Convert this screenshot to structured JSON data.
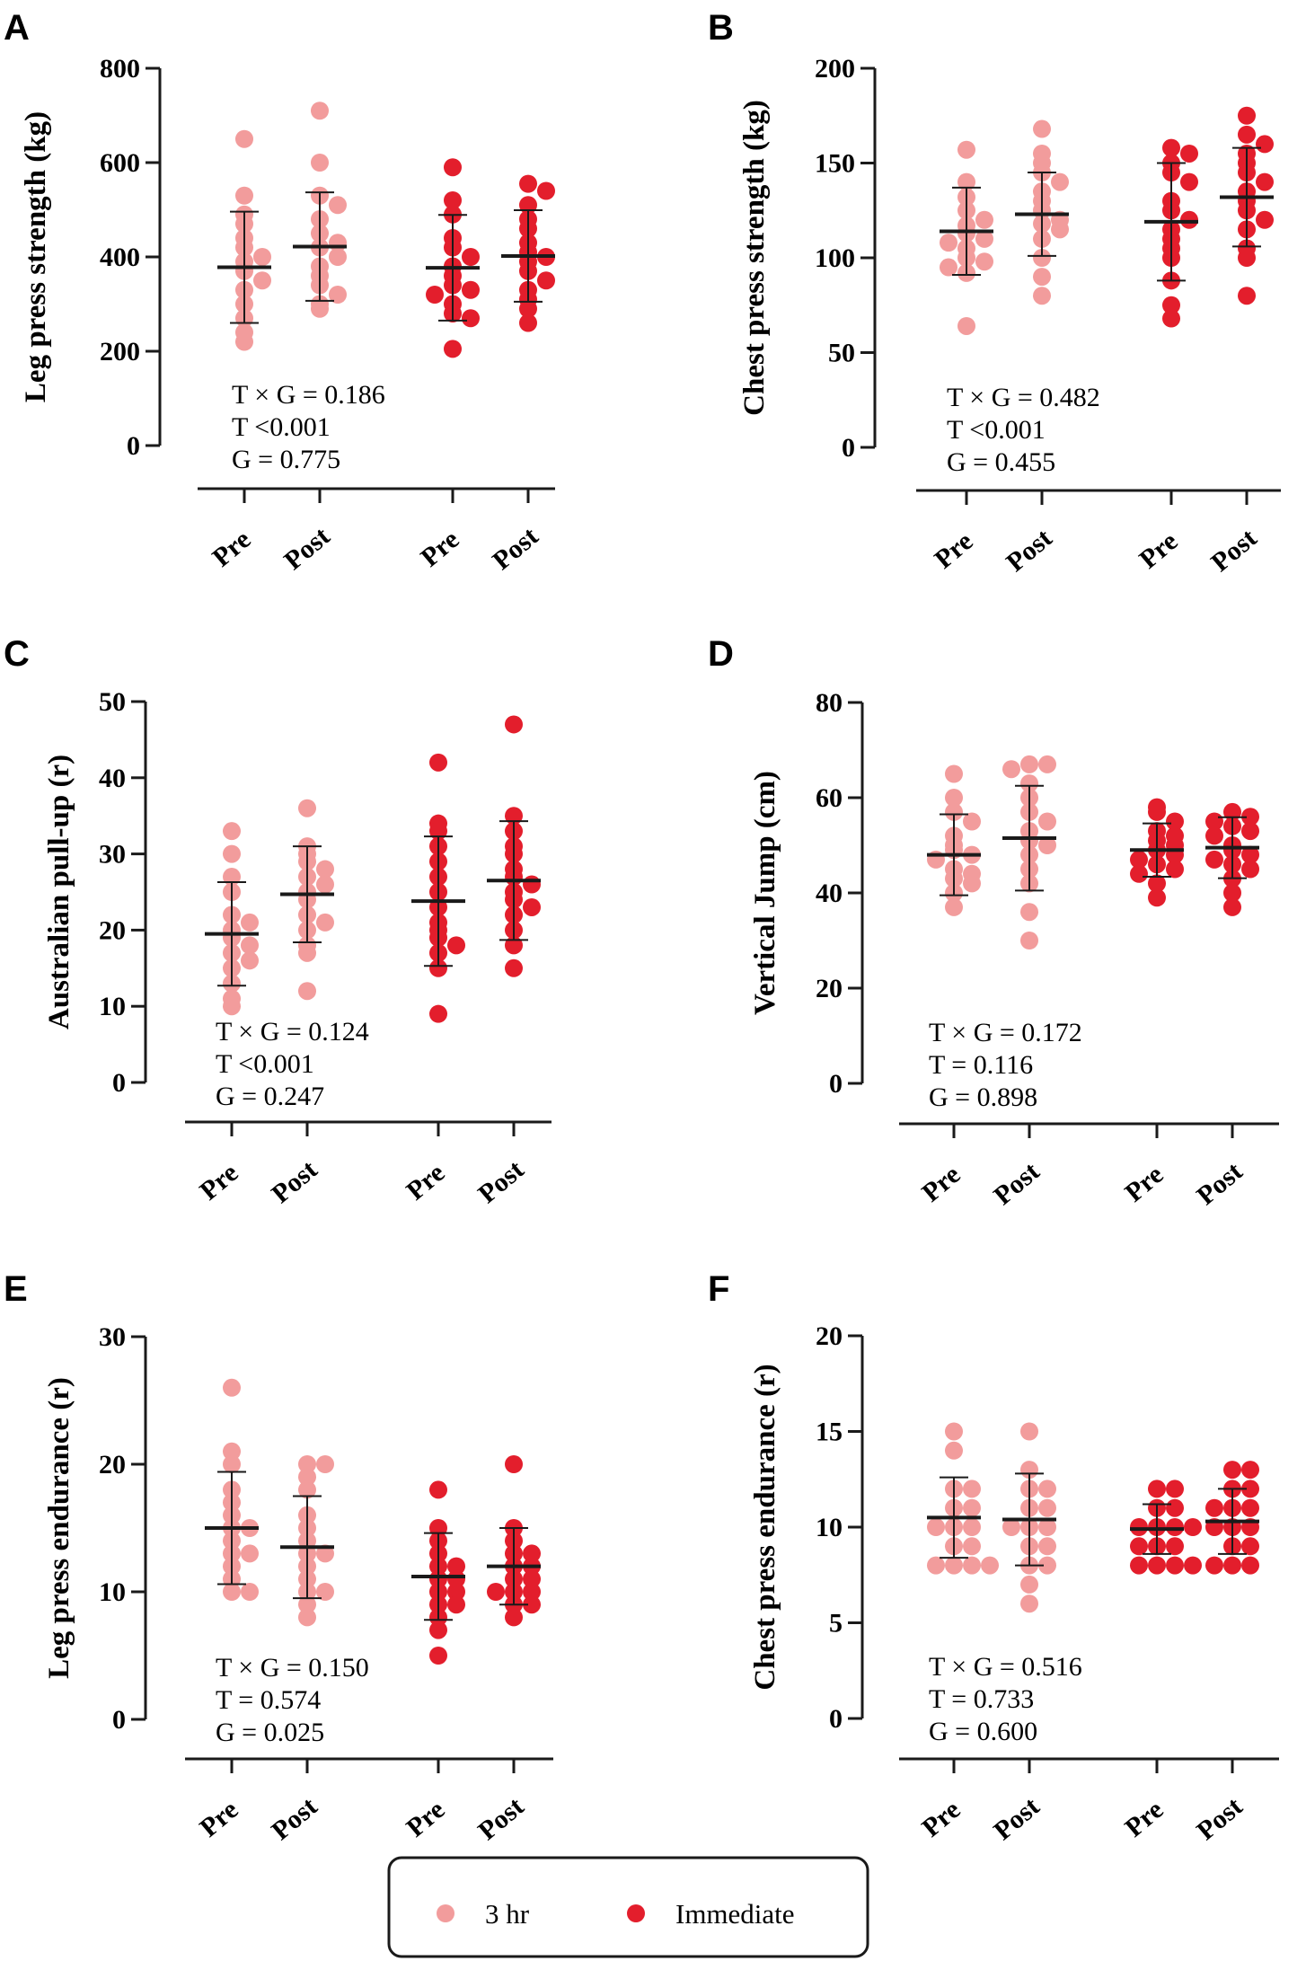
{
  "colors": {
    "three_hr": "#f29c9c",
    "immediate": "#e31e2c",
    "axis": "#1a1a1a"
  },
  "legend": {
    "items": [
      {
        "label": "3 hr",
        "color": "#f29c9c"
      },
      {
        "label": "Immediate",
        "color": "#e31e2c"
      }
    ]
  },
  "chart_data": [
    {
      "panel": "A",
      "type": "scatter",
      "ylabel": "Leg press strength (kg)",
      "ylim": [
        0,
        800
      ],
      "yticks": [
        0,
        200,
        400,
        600,
        800
      ],
      "categories": [
        "Pre",
        "Post",
        "Pre",
        "Post"
      ],
      "groups": [
        "3 hr",
        "3 hr",
        "Immediate",
        "Immediate"
      ],
      "stats": [
        "T × G = 0.186",
        "T <0.001",
        "G = 0.775"
      ],
      "series": [
        {
          "name": "3 hr Pre",
          "mean": 378,
          "sd": 118,
          "values": [
            650,
            530,
            490,
            470,
            440,
            420,
            400,
            390,
            370,
            350,
            330,
            300,
            270,
            240,
            220
          ]
        },
        {
          "name": "3 hr Post",
          "mean": 422,
          "sd": 115,
          "values": [
            710,
            600,
            530,
            510,
            480,
            450,
            430,
            420,
            400,
            380,
            360,
            340,
            320,
            300,
            290
          ]
        },
        {
          "name": "Immediate Pre",
          "mean": 377,
          "sd": 112,
          "values": [
            590,
            520,
            490,
            440,
            420,
            400,
            380,
            360,
            340,
            330,
            320,
            300,
            280,
            270,
            205
          ]
        },
        {
          "name": "Immediate Post",
          "mean": 402,
          "sd": 97,
          "values": [
            555,
            540,
            510,
            480,
            460,
            430,
            410,
            400,
            390,
            370,
            350,
            330,
            310,
            290,
            260
          ]
        }
      ]
    },
    {
      "panel": "B",
      "type": "scatter",
      "ylabel": "Chest press strength (kg)",
      "ylim": [
        0,
        200
      ],
      "yticks": [
        0,
        50,
        100,
        150,
        200
      ],
      "categories": [
        "Pre",
        "Post",
        "Pre",
        "Post"
      ],
      "groups": [
        "3 hr",
        "3 hr",
        "Immediate",
        "Immediate"
      ],
      "stats": [
        "T × G = 0.482",
        "T <0.001",
        "G = 0.455"
      ],
      "series": [
        {
          "name": "3 hr Pre",
          "mean": 114,
          "sd": 23,
          "values": [
            157,
            140,
            132,
            125,
            120,
            117,
            113,
            110,
            108,
            105,
            100,
            98,
            95,
            92,
            64
          ]
        },
        {
          "name": "3 hr Post",
          "mean": 123,
          "sd": 22,
          "values": [
            168,
            155,
            150,
            145,
            140,
            135,
            130,
            125,
            120,
            118,
            115,
            110,
            100,
            90,
            80
          ]
        },
        {
          "name": "Immediate Pre",
          "mean": 119,
          "sd": 31,
          "values": [
            158,
            155,
            150,
            145,
            140,
            130,
            125,
            120,
            115,
            110,
            105,
            100,
            88,
            75,
            68
          ]
        },
        {
          "name": "Immediate Post",
          "mean": 132,
          "sd": 26,
          "values": [
            175,
            165,
            160,
            155,
            150,
            145,
            140,
            135,
            130,
            125,
            120,
            115,
            105,
            100,
            80
          ]
        }
      ]
    },
    {
      "panel": "C",
      "type": "scatter",
      "ylabel": "Australian pull-up (r)",
      "ylim": [
        0,
        50
      ],
      "yticks": [
        0,
        10,
        20,
        30,
        40,
        50
      ],
      "categories": [
        "Pre",
        "Post",
        "Pre",
        "Post"
      ],
      "groups": [
        "3 hr",
        "3 hr",
        "Immediate",
        "Immediate"
      ],
      "stats": [
        "T × G = 0.124",
        "T <0.001",
        "G = 0.247"
      ],
      "series": [
        {
          "name": "3 hr Pre",
          "mean": 19.5,
          "sd": 6.8,
          "values": [
            33,
            30,
            27,
            25,
            22,
            21,
            20,
            19,
            18,
            17,
            16,
            15,
            13,
            11,
            10
          ]
        },
        {
          "name": "3 hr Post",
          "mean": 24.7,
          "sd": 6.3,
          "values": [
            36,
            31,
            30,
            29,
            28,
            27,
            26,
            25,
            24,
            22,
            21,
            20,
            18,
            17,
            12
          ]
        },
        {
          "name": "Immediate Pre",
          "mean": 23.8,
          "sd": 8.5,
          "values": [
            42,
            34,
            33,
            31,
            29,
            27,
            25,
            23,
            21,
            20,
            19,
            18,
            17,
            15,
            9
          ]
        },
        {
          "name": "Immediate Post",
          "mean": 26.5,
          "sd": 7.8,
          "values": [
            47,
            35,
            33,
            31,
            30,
            28,
            27,
            26,
            25,
            24,
            23,
            22,
            20,
            18,
            15
          ]
        }
      ]
    },
    {
      "panel": "D",
      "type": "scatter",
      "ylabel": "Vertical Jump (cm)",
      "ylim": [
        0,
        80
      ],
      "yticks": [
        0,
        20,
        40,
        60,
        80
      ],
      "categories": [
        "Pre",
        "Post",
        "Pre",
        "Post"
      ],
      "groups": [
        "3 hr",
        "3 hr",
        "Immediate",
        "Immediate"
      ],
      "stats": [
        "T × G = 0.172",
        "T = 0.116",
        "G = 0.898"
      ],
      "series": [
        {
          "name": "3 hr Pre",
          "mean": 48,
          "sd": 8.5,
          "values": [
            65,
            60,
            57,
            55,
            52,
            50,
            49,
            48,
            47,
            45,
            44,
            43,
            42,
            40,
            37
          ]
        },
        {
          "name": "3 hr Post",
          "mean": 51.5,
          "sd": 11,
          "values": [
            67,
            67,
            66,
            63,
            60,
            57,
            55,
            53,
            51,
            50,
            48,
            45,
            42,
            36,
            30
          ]
        },
        {
          "name": "Immediate Pre",
          "mean": 49,
          "sd": 5.6,
          "values": [
            58,
            57,
            55,
            53,
            52,
            51,
            50,
            49,
            48,
            47,
            46,
            45,
            44,
            42,
            39
          ]
        },
        {
          "name": "Immediate Post",
          "mean": 49.5,
          "sd": 6.4,
          "values": [
            57,
            56,
            55,
            54,
            53,
            52,
            50,
            49,
            48,
            47,
            46,
            45,
            43,
            40,
            37
          ]
        }
      ]
    },
    {
      "panel": "E",
      "type": "scatter",
      "ylabel": "Leg press endurance (r)",
      "ylim": [
        0,
        30
      ],
      "yticks": [
        0,
        10,
        20,
        30
      ],
      "categories": [
        "Pre",
        "Post",
        "Pre",
        "Post"
      ],
      "groups": [
        "3 hr",
        "3 hr",
        "Immediate",
        "Immediate"
      ],
      "stats": [
        "T × G = 0.150",
        "T = 0.574",
        "G = 0.025"
      ],
      "series": [
        {
          "name": "3 hr Pre",
          "mean": 15,
          "sd": 4.4,
          "values": [
            26,
            21,
            20,
            18,
            17,
            16,
            15,
            15,
            14,
            13,
            13,
            12,
            11,
            10,
            10
          ]
        },
        {
          "name": "3 hr Post",
          "mean": 13.5,
          "sd": 4,
          "values": [
            20,
            20,
            19,
            18,
            16,
            15,
            14,
            13,
            13,
            12,
            11,
            10,
            10,
            9,
            8
          ]
        },
        {
          "name": "Immediate Pre",
          "mean": 11.2,
          "sd": 3.4,
          "values": [
            18,
            15,
            14,
            13,
            12,
            12,
            11,
            11,
            10,
            10,
            9,
            9,
            8,
            7,
            5
          ]
        },
        {
          "name": "Immediate Post",
          "mean": 12,
          "sd": 3,
          "values": [
            20,
            15,
            14,
            13,
            13,
            12,
            12,
            11,
            11,
            10,
            10,
            10,
            9,
            9,
            8
          ]
        }
      ]
    },
    {
      "panel": "F",
      "type": "scatter",
      "ylabel": "Chest press endurance (r)",
      "ylim": [
        0,
        20
      ],
      "yticks": [
        0,
        5,
        10,
        15,
        20
      ],
      "categories": [
        "Pre",
        "Post",
        "Pre",
        "Post"
      ],
      "groups": [
        "3 hr",
        "3 hr",
        "Immediate",
        "Immediate"
      ],
      "stats": [
        "T × G = 0.516",
        "T = 0.733",
        "G = 0.600"
      ],
      "series": [
        {
          "name": "3 hr Pre",
          "mean": 10.5,
          "sd": 2.1,
          "values": [
            15,
            14,
            12,
            12,
            11,
            11,
            10,
            10,
            10,
            9,
            9,
            8,
            8,
            8,
            8
          ]
        },
        {
          "name": "3 hr Post",
          "mean": 10.4,
          "sd": 2.4,
          "values": [
            15,
            13,
            12,
            12,
            11,
            11,
            10,
            10,
            10,
            9,
            9,
            8,
            8,
            7,
            6
          ]
        },
        {
          "name": "Immediate Pre",
          "mean": 9.9,
          "sd": 1.3,
          "values": [
            12,
            12,
            11,
            11,
            10,
            10,
            10,
            10,
            9,
            9,
            9,
            8,
            8,
            8,
            8
          ]
        },
        {
          "name": "Immediate Post",
          "mean": 10.3,
          "sd": 1.7,
          "values": [
            13,
            13,
            12,
            12,
            11,
            11,
            11,
            10,
            10,
            10,
            9,
            9,
            8,
            8,
            8
          ]
        }
      ]
    }
  ]
}
